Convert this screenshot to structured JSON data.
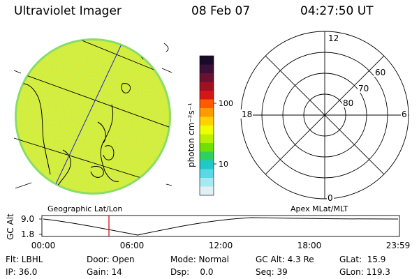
{
  "header": {
    "title": "Ultraviolet Imager",
    "date": "08 Feb 07",
    "time": "04:27:50 UT"
  },
  "colorbar": {
    "unit_label": "photon cm⁻²s⁻¹",
    "ticks": [
      "100",
      "10"
    ],
    "colors": [
      "#1a0a2a",
      "#3a0f3a",
      "#6a1030",
      "#a01020",
      "#d01818",
      "#ff5a00",
      "#ff9a00",
      "#ffd200",
      "#f0ff00",
      "#b8f000",
      "#70e000",
      "#30d060",
      "#20c8c8",
      "#5ad8e8",
      "#a8e8f0",
      "#e0f0f4"
    ]
  },
  "left_panel": {
    "caption": "Geographic Lat/Lon",
    "disk_color": "#d8ee3a",
    "disk_edge_color": "#88dd66"
  },
  "right_panel": {
    "caption": "Apex MLat/MLT",
    "mlt_labels": {
      "top": "12",
      "left": "18",
      "right": "6",
      "bottom": "0"
    },
    "mlat_labels": [
      "60",
      "70",
      "80"
    ]
  },
  "timeline": {
    "ylabel": "GC Alt",
    "y_ticks": [
      "9.0",
      "1.8"
    ],
    "x_ticks": [
      "00:00",
      "06:00",
      "12:00",
      "18:00",
      "23:59"
    ],
    "marker_color": "#cc0000",
    "current_time": "04:27:50"
  },
  "info": {
    "filter": "Flt: LBHL",
    "door": "Door: Open",
    "mode": "Mode: Normal",
    "gc_alt": "GC Alt: 4.3 Re",
    "glat": "GLat:  15.9",
    "ip": "IP: 36.0",
    "gain": "Gain: 14",
    "dsp": "Dsp:    0.0",
    "seq": "Seq: 39",
    "glon": "GLon: 119.3"
  }
}
